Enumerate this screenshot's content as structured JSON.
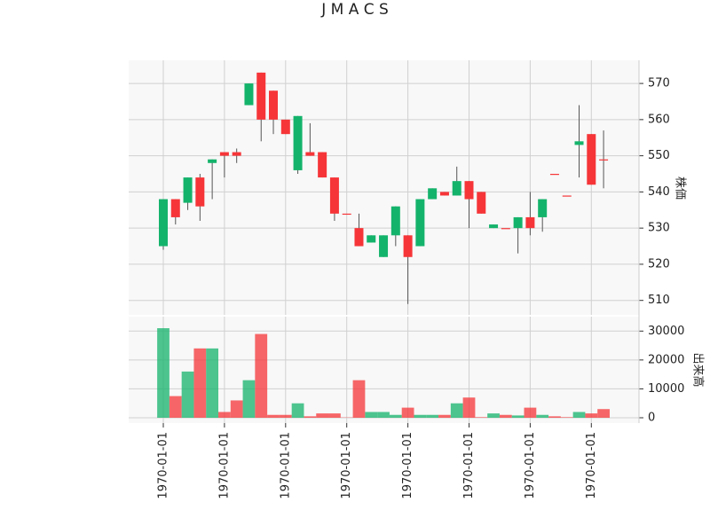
{
  "chart_data": {
    "type": "candlestick",
    "title": "J M A C S",
    "y_label": "株価",
    "y2_label": "出来高",
    "categories": [
      "1970-01-01",
      null,
      null,
      null,
      null,
      "1970-01-01",
      null,
      null,
      null,
      null,
      "1970-01-01",
      null,
      null,
      null,
      null,
      "1970-01-01",
      null,
      null,
      null,
      null,
      "1970-01-01",
      null,
      null,
      null,
      null,
      "1970-01-01",
      null,
      null,
      null,
      null,
      "1970-01-01",
      null,
      null,
      null,
      null,
      "1970-01-01",
      null
    ],
    "open": [
      525,
      538,
      537,
      544,
      548,
      551,
      551,
      564,
      573,
      568,
      560,
      546,
      551,
      551,
      544,
      534,
      530,
      526,
      522,
      528,
      528,
      525,
      538,
      540,
      539,
      543,
      540,
      530,
      530,
      530,
      533,
      533,
      545,
      539,
      553,
      556,
      549
    ],
    "high": [
      538,
      538,
      544,
      545,
      549,
      551,
      552,
      570,
      573,
      568,
      560,
      561,
      559,
      551,
      544,
      534,
      534,
      528,
      528,
      536,
      528,
      538,
      541,
      540,
      547,
      543,
      540,
      531,
      530,
      533,
      540,
      538,
      545,
      539,
      564,
      556,
      557
    ],
    "low": [
      524,
      531,
      535,
      532,
      538,
      544,
      548,
      564,
      554,
      556,
      556,
      545,
      550,
      544,
      532,
      534,
      525,
      526,
      522,
      525,
      509,
      525,
      538,
      539,
      539,
      530,
      534,
      530,
      530,
      523,
      528,
      529,
      545,
      539,
      544,
      542,
      541
    ],
    "close": [
      538,
      533,
      544,
      536,
      549,
      550,
      550,
      570,
      560,
      560,
      556,
      561,
      550,
      544,
      534,
      534,
      525,
      528,
      528,
      536,
      522,
      538,
      541,
      539,
      543,
      538,
      534,
      531,
      530,
      533,
      530,
      538,
      545,
      539,
      554,
      542,
      549
    ],
    "volume": [
      31000,
      7500,
      16000,
      24000,
      24000,
      2000,
      6000,
      13000,
      29000,
      1000,
      1000,
      5000,
      500,
      1500,
      1500,
      100,
      13000,
      2000,
      2000,
      1000,
      3500,
      1000,
      1000,
      1000,
      5000,
      7000,
      200,
      1500,
      1000,
      800,
      3500,
      1000,
      500,
      200,
      2000,
      1500,
      3000
    ],
    "up_color": "#14b36b",
    "down_color": "#f63538",
    "ylim": [
      506,
      576.4
    ],
    "yticks": [
      510,
      520,
      530,
      540,
      550,
      560,
      570
    ],
    "y2lim": [
      0,
      35000
    ],
    "y2ticks": [
      0,
      10000,
      20000,
      30000
    ],
    "grid": true
  }
}
